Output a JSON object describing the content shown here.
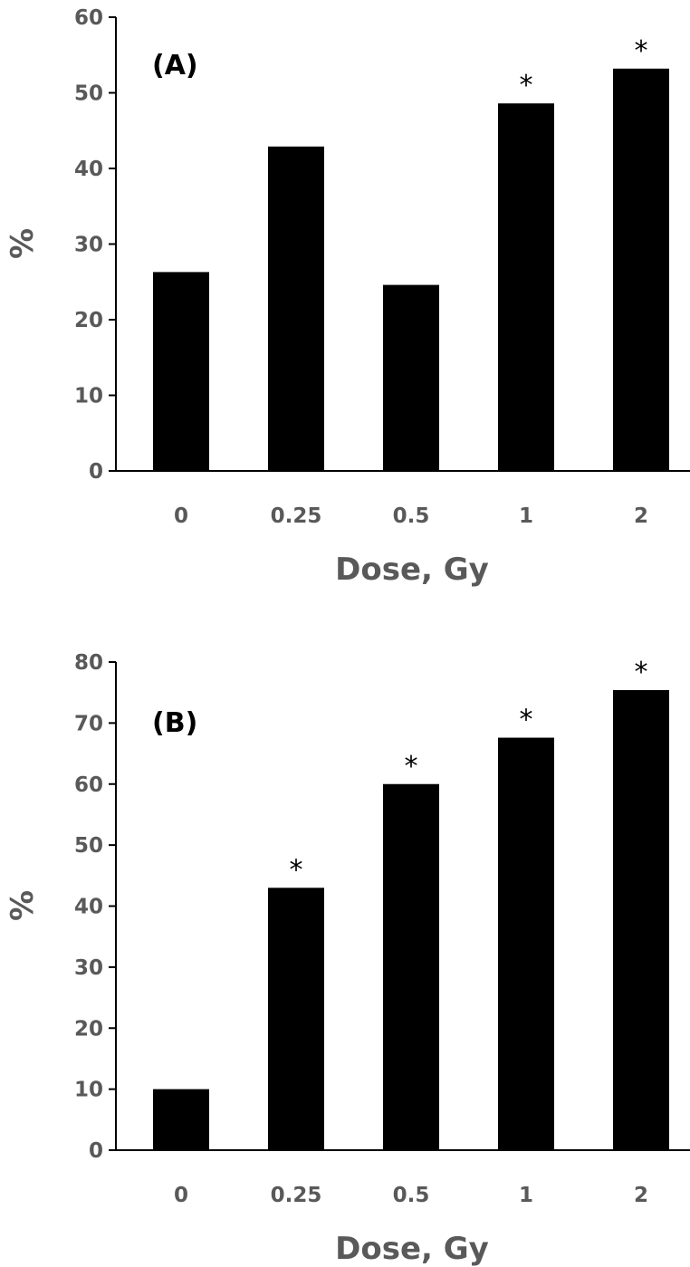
{
  "chart_data": [
    {
      "type": "bar",
      "panel_label": "(A)",
      "categories": [
        "0",
        "0.25",
        "0.5",
        "1",
        "2"
      ],
      "values": [
        26.3,
        42.9,
        24.6,
        48.6,
        53.2
      ],
      "significance": [
        "",
        "",
        "",
        "*",
        "*"
      ],
      "xlabel": "Dose, Gy",
      "ylabel": "%",
      "ylim": [
        0,
        60
      ],
      "yticks": [
        0,
        10,
        20,
        30,
        40,
        50,
        60
      ],
      "bar_color": "#000000",
      "grid": false,
      "legend": "none"
    },
    {
      "type": "bar",
      "panel_label": "(B)",
      "categories": [
        "0",
        "0.25",
        "0.5",
        "1",
        "2"
      ],
      "values": [
        10.0,
        43.0,
        60.0,
        67.6,
        75.4
      ],
      "significance": [
        "",
        "*",
        "*",
        "*",
        "*"
      ],
      "xlabel": "Dose, Gy",
      "ylabel": "%",
      "ylim": [
        0,
        80
      ],
      "yticks": [
        0,
        10,
        20,
        30,
        40,
        50,
        60,
        70,
        80
      ],
      "bar_color": "#000000",
      "grid": false,
      "legend": "none"
    }
  ]
}
